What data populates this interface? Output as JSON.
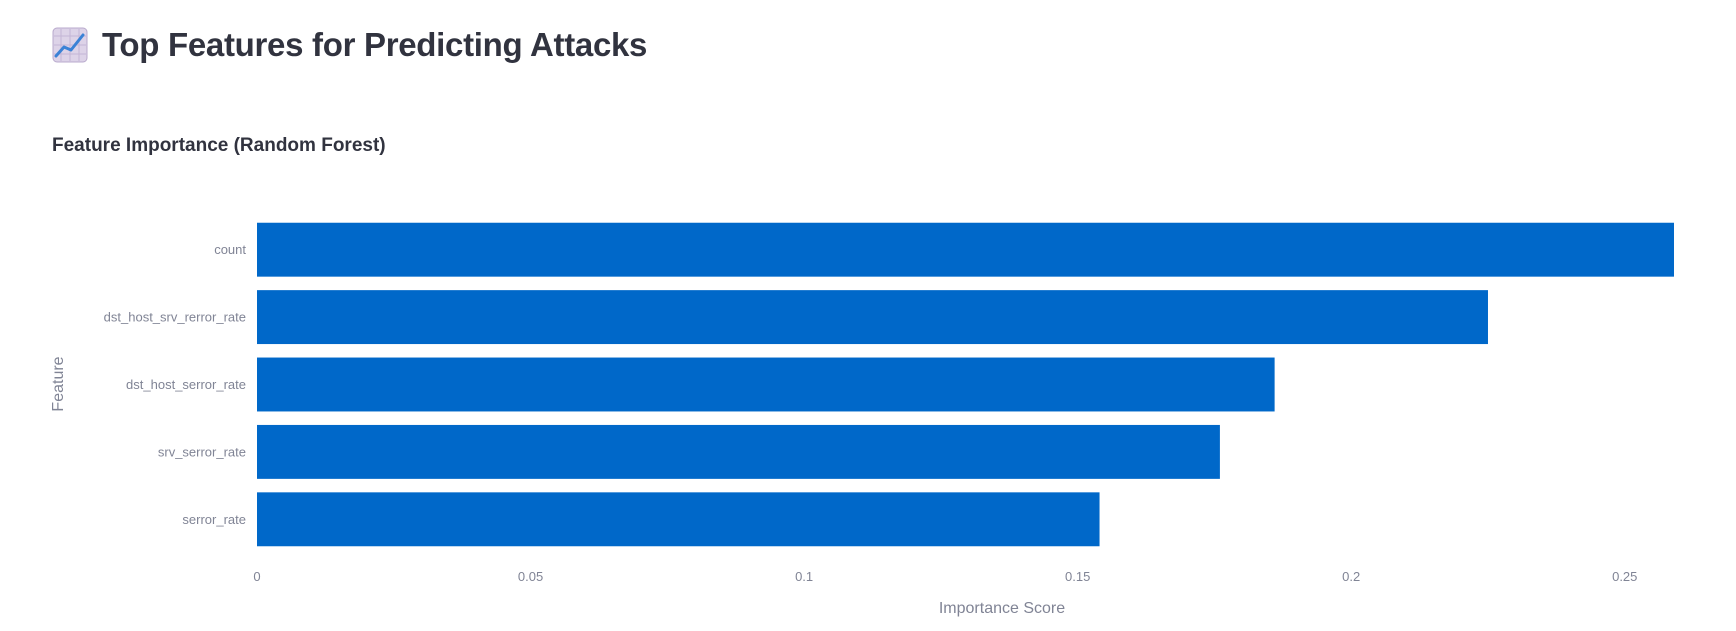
{
  "header": {
    "title": "Top Features for Predicting Attacks",
    "icon": "chart-increasing-icon"
  },
  "chart_data": {
    "type": "bar",
    "orientation": "horizontal",
    "title": "Feature Importance (Random Forest)",
    "xlabel": "Importance Score",
    "ylabel": "Feature",
    "categories": [
      "count",
      "dst_host_srv_rerror_rate",
      "dst_host_serror_rate",
      "srv_serror_rate",
      "serror_rate"
    ],
    "values": [
      0.259,
      0.225,
      0.186,
      0.176,
      0.154
    ],
    "xlim": [
      0,
      0.259
    ],
    "xticks": [
      0,
      0.05,
      0.1,
      0.15,
      0.2,
      0.25
    ],
    "xtick_labels": [
      "0",
      "0.05",
      "0.1",
      "0.15",
      "0.2",
      "0.25"
    ],
    "bar_color": "#0068c9",
    "grid": false,
    "legend": "none"
  }
}
